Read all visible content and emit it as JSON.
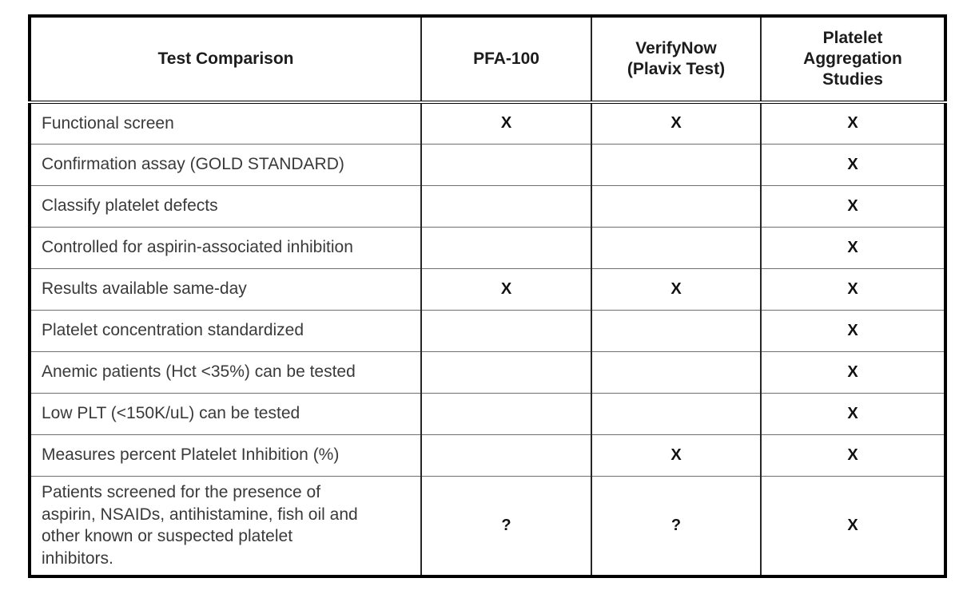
{
  "page": {
    "background_color": "#ffffff",
    "border_color": "#000000",
    "label_text_color": "#3a3a3a",
    "mark_text_color": "#111111"
  },
  "table": {
    "header": {
      "test_comparison": "Test Comparison",
      "pfa100": "PFA-100",
      "verifynow": "VerifyNow\n(Plavix Test)",
      "aggregation": "Platelet\nAggregation\nStudies"
    },
    "rows": [
      {
        "label": "Functional screen",
        "pfa100": "X",
        "verifynow": "X",
        "aggregation": "X"
      },
      {
        "label": "Confirmation assay (GOLD STANDARD)",
        "pfa100": "",
        "verifynow": "",
        "aggregation": "X"
      },
      {
        "label": "Classify platelet defects",
        "pfa100": "",
        "verifynow": "",
        "aggregation": "X"
      },
      {
        "label": "Controlled for aspirin-associated inhibition",
        "pfa100": "",
        "verifynow": "",
        "aggregation": "X"
      },
      {
        "label": "Results available same-day",
        "pfa100": "X",
        "verifynow": "X",
        "aggregation": "X"
      },
      {
        "label": "Platelet concentration standardized",
        "pfa100": "",
        "verifynow": "",
        "aggregation": "X"
      },
      {
        "label": "Anemic patients (Hct <35%) can be tested",
        "pfa100": "",
        "verifynow": "",
        "aggregation": "X"
      },
      {
        "label": "Low PLT (<150K/uL) can be tested",
        "pfa100": "",
        "verifynow": "",
        "aggregation": "X"
      },
      {
        "label": "Measures percent Platelet Inhibition (%)",
        "pfa100": "",
        "verifynow": "X",
        "aggregation": "X"
      },
      {
        "label": "Patients screened for the presence of\naspirin, NSAIDs, antihistamine, fish oil and\nother known or suspected platelet\ninhibitors.",
        "pfa100": "?",
        "verifynow": "?",
        "aggregation": "X"
      }
    ]
  }
}
